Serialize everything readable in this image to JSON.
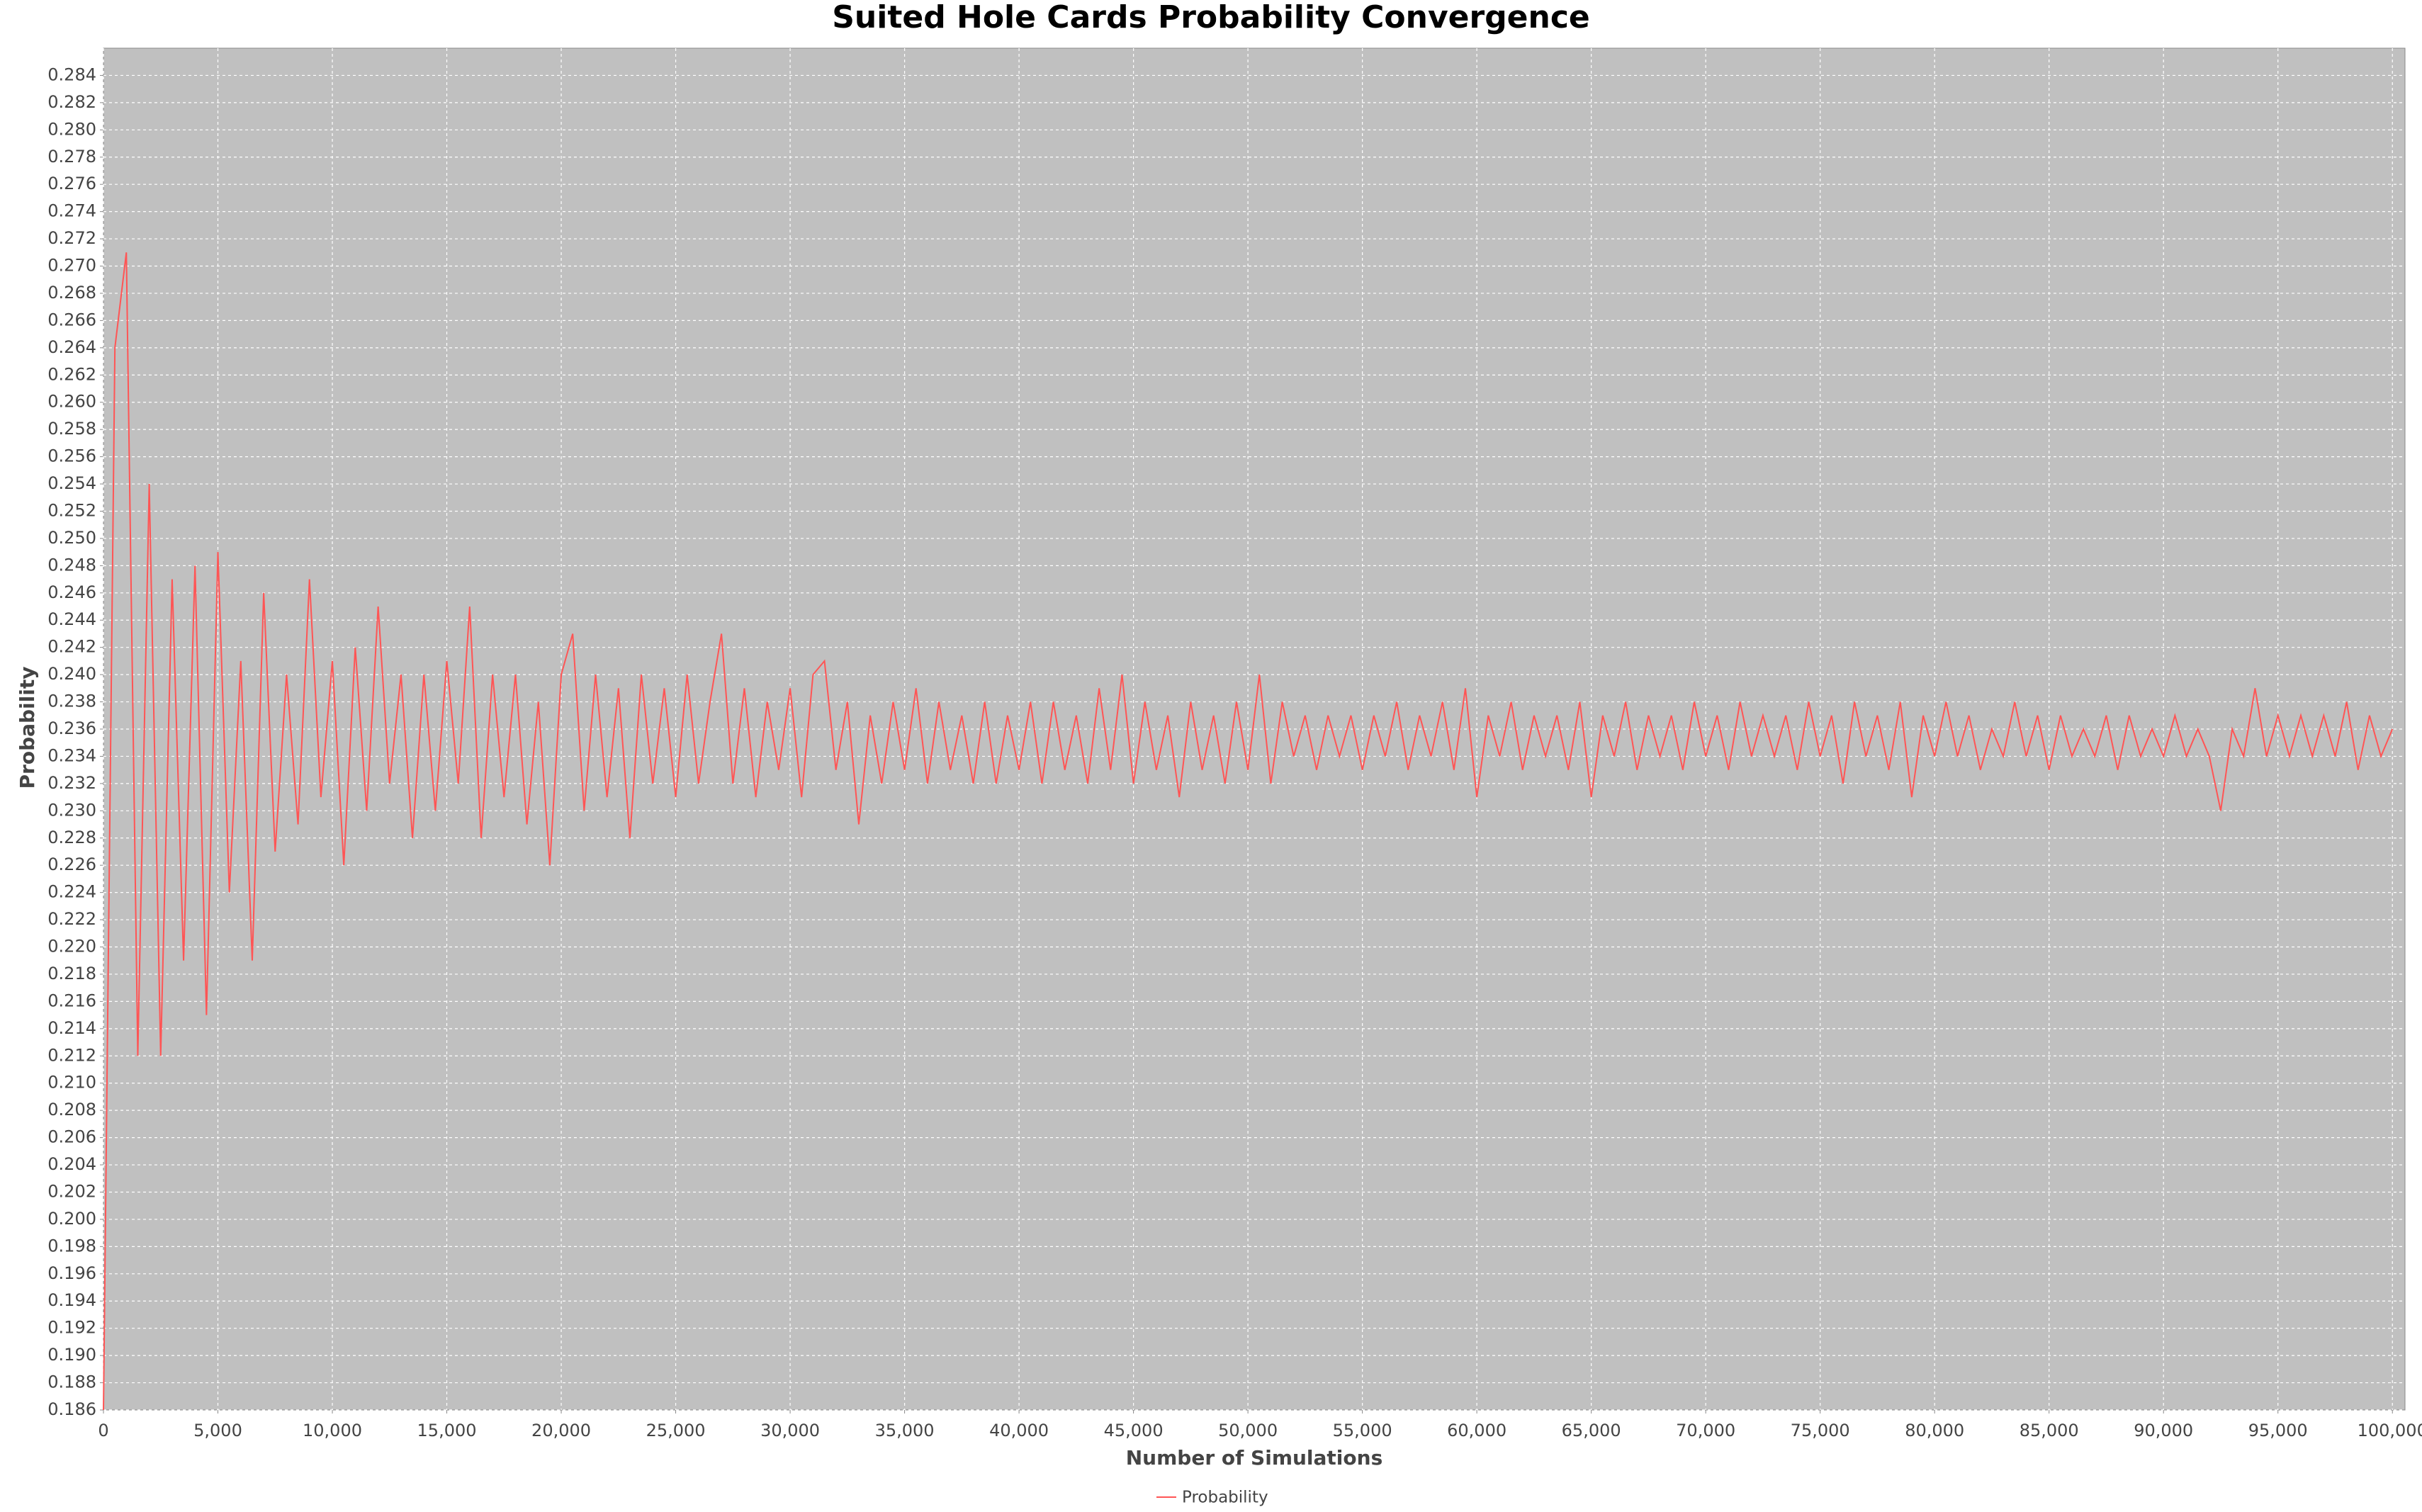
{
  "chart_data": {
    "type": "line",
    "title": "Suited Hole Cards Probability Convergence",
    "xlabel": "Number of Simulations",
    "ylabel": "Probability",
    "grid": true,
    "legend": "bottom",
    "xlim": [
      0,
      100550
    ],
    "ylim": [
      0.186,
      0.286
    ],
    "xticks": [
      {
        "value": 0,
        "label": "0"
      },
      {
        "value": 5000,
        "label": "5,000"
      },
      {
        "value": 10000,
        "label": "10,000"
      },
      {
        "value": 15000,
        "label": "15,000"
      },
      {
        "value": 20000,
        "label": "20,000"
      },
      {
        "value": 25000,
        "label": "25,000"
      },
      {
        "value": 30000,
        "label": "30,000"
      },
      {
        "value": 35000,
        "label": "35,000"
      },
      {
        "value": 40000,
        "label": "40,000"
      },
      {
        "value": 45000,
        "label": "45,000"
      },
      {
        "value": 50000,
        "label": "50,000"
      },
      {
        "value": 55000,
        "label": "55,000"
      },
      {
        "value": 60000,
        "label": "60,000"
      },
      {
        "value": 65000,
        "label": "65,000"
      },
      {
        "value": 70000,
        "label": "70,000"
      },
      {
        "value": 75000,
        "label": "75,000"
      },
      {
        "value": 80000,
        "label": "80,000"
      },
      {
        "value": 85000,
        "label": "85,000"
      },
      {
        "value": 90000,
        "label": "90,000"
      },
      {
        "value": 95000,
        "label": "95,000"
      },
      {
        "value": 100000,
        "label": "100,000"
      }
    ],
    "yticks": [
      {
        "value": 0.186,
        "label": "0.186"
      },
      {
        "value": 0.188,
        "label": "0.188"
      },
      {
        "value": 0.19,
        "label": "0.190"
      },
      {
        "value": 0.192,
        "label": "0.192"
      },
      {
        "value": 0.194,
        "label": "0.194"
      },
      {
        "value": 0.196,
        "label": "0.196"
      },
      {
        "value": 0.198,
        "label": "0.198"
      },
      {
        "value": 0.2,
        "label": "0.200"
      },
      {
        "value": 0.202,
        "label": "0.202"
      },
      {
        "value": 0.204,
        "label": "0.204"
      },
      {
        "value": 0.206,
        "label": "0.206"
      },
      {
        "value": 0.208,
        "label": "0.208"
      },
      {
        "value": 0.21,
        "label": "0.210"
      },
      {
        "value": 0.212,
        "label": "0.212"
      },
      {
        "value": 0.214,
        "label": "0.214"
      },
      {
        "value": 0.216,
        "label": "0.216"
      },
      {
        "value": 0.218,
        "label": "0.218"
      },
      {
        "value": 0.22,
        "label": "0.220"
      },
      {
        "value": 0.222,
        "label": "0.222"
      },
      {
        "value": 0.224,
        "label": "0.224"
      },
      {
        "value": 0.226,
        "label": "0.226"
      },
      {
        "value": 0.228,
        "label": "0.228"
      },
      {
        "value": 0.23,
        "label": "0.230"
      },
      {
        "value": 0.232,
        "label": "0.232"
      },
      {
        "value": 0.234,
        "label": "0.234"
      },
      {
        "value": 0.236,
        "label": "0.236"
      },
      {
        "value": 0.238,
        "label": "0.238"
      },
      {
        "value": 0.24,
        "label": "0.240"
      },
      {
        "value": 0.242,
        "label": "0.242"
      },
      {
        "value": 0.244,
        "label": "0.244"
      },
      {
        "value": 0.246,
        "label": "0.246"
      },
      {
        "value": 0.248,
        "label": "0.248"
      },
      {
        "value": 0.25,
        "label": "0.250"
      },
      {
        "value": 0.252,
        "label": "0.252"
      },
      {
        "value": 0.254,
        "label": "0.254"
      },
      {
        "value": 0.256,
        "label": "0.256"
      },
      {
        "value": 0.258,
        "label": "0.258"
      },
      {
        "value": 0.26,
        "label": "0.260"
      },
      {
        "value": 0.262,
        "label": "0.262"
      },
      {
        "value": 0.264,
        "label": "0.264"
      },
      {
        "value": 0.266,
        "label": "0.266"
      },
      {
        "value": 0.268,
        "label": "0.268"
      },
      {
        "value": 0.27,
        "label": "0.270"
      },
      {
        "value": 0.272,
        "label": "0.272"
      },
      {
        "value": 0.274,
        "label": "0.274"
      },
      {
        "value": 0.276,
        "label": "0.276"
      },
      {
        "value": 0.278,
        "label": "0.278"
      },
      {
        "value": 0.28,
        "label": "0.280"
      },
      {
        "value": 0.282,
        "label": "0.282"
      },
      {
        "value": 0.284,
        "label": "0.284"
      }
    ],
    "x": [
      0,
      500,
      1000,
      1500,
      2000,
      2500,
      3000,
      3500,
      4000,
      4500,
      5000,
      5500,
      6000,
      6500,
      7000,
      7500,
      8000,
      8500,
      9000,
      9500,
      10000,
      10500,
      11000,
      11500,
      12000,
      12500,
      13000,
      13500,
      14000,
      14500,
      15000,
      15500,
      16000,
      16500,
      17000,
      17500,
      18000,
      18500,
      19000,
      19500,
      20000,
      20500,
      21000,
      21500,
      22000,
      22500,
      23000,
      23500,
      24000,
      24500,
      25000,
      25500,
      26000,
      26500,
      27000,
      27500,
      28000,
      28500,
      29000,
      29500,
      30000,
      30500,
      31000,
      31500,
      32000,
      32500,
      33000,
      33500,
      34000,
      34500,
      35000,
      35500,
      36000,
      36500,
      37000,
      37500,
      38000,
      38500,
      39000,
      39500,
      40000,
      40500,
      41000,
      41500,
      42000,
      42500,
      43000,
      43500,
      44000,
      44500,
      45000,
      45500,
      46000,
      46500,
      47000,
      47500,
      48000,
      48500,
      49000,
      49500,
      50000,
      50500,
      51000,
      51500,
      52000,
      52500,
      53000,
      53500,
      54000,
      54500,
      55000,
      55500,
      56000,
      56500,
      57000,
      57500,
      58000,
      58500,
      59000,
      59500,
      60000,
      60500,
      61000,
      61500,
      62000,
      62500,
      63000,
      63500,
      64000,
      64500,
      65000,
      65500,
      66000,
      66500,
      67000,
      67500,
      68000,
      68500,
      69000,
      69500,
      70000,
      70500,
      71000,
      71500,
      72000,
      72500,
      73000,
      73500,
      74000,
      74500,
      75000,
      75500,
      76000,
      76500,
      77000,
      77500,
      78000,
      78500,
      79000,
      79500,
      80000,
      80500,
      81000,
      81500,
      82000,
      82500,
      83000,
      83500,
      84000,
      84500,
      85000,
      85500,
      86000,
      86500,
      87000,
      87500,
      88000,
      88500,
      89000,
      89500,
      90000,
      90500,
      91000,
      91500,
      92000,
      92500,
      93000,
      93500,
      94000,
      94500,
      95000,
      95500,
      96000,
      96500,
      97000,
      97500,
      98000,
      98500,
      99000,
      99500,
      100000
    ],
    "series": [
      {
        "name": "Probability",
        "color": "#ff5555",
        "values": [
          0.186,
          0.264,
          0.271,
          0.212,
          0.254,
          0.212,
          0.247,
          0.219,
          0.248,
          0.215,
          0.249,
          0.224,
          0.241,
          0.219,
          0.246,
          0.227,
          0.24,
          0.229,
          0.247,
          0.231,
          0.241,
          0.226,
          0.242,
          0.23,
          0.245,
          0.232,
          0.24,
          0.228,
          0.24,
          0.23,
          0.241,
          0.232,
          0.245,
          0.228,
          0.24,
          0.231,
          0.24,
          0.229,
          0.238,
          0.226,
          0.24,
          0.243,
          0.23,
          0.24,
          0.231,
          0.239,
          0.228,
          0.24,
          0.232,
          0.239,
          0.231,
          0.24,
          0.232,
          0.238,
          0.243,
          0.232,
          0.239,
          0.231,
          0.238,
          0.233,
          0.239,
          0.231,
          0.24,
          0.241,
          0.233,
          0.238,
          0.229,
          0.237,
          0.232,
          0.238,
          0.233,
          0.239,
          0.232,
          0.238,
          0.233,
          0.237,
          0.232,
          0.238,
          0.232,
          0.237,
          0.233,
          0.238,
          0.232,
          0.238,
          0.233,
          0.237,
          0.232,
          0.239,
          0.233,
          0.24,
          0.232,
          0.238,
          0.233,
          0.237,
          0.231,
          0.238,
          0.233,
          0.237,
          0.232,
          0.238,
          0.233,
          0.24,
          0.232,
          0.238,
          0.234,
          0.237,
          0.233,
          0.237,
          0.234,
          0.237,
          0.233,
          0.237,
          0.234,
          0.238,
          0.233,
          0.237,
          0.234,
          0.238,
          0.233,
          0.239,
          0.231,
          0.237,
          0.234,
          0.238,
          0.233,
          0.237,
          0.234,
          0.237,
          0.233,
          0.238,
          0.231,
          0.237,
          0.234,
          0.238,
          0.233,
          0.237,
          0.234,
          0.237,
          0.233,
          0.238,
          0.234,
          0.237,
          0.233,
          0.238,
          0.234,
          0.237,
          0.234,
          0.237,
          0.233,
          0.238,
          0.234,
          0.237,
          0.232,
          0.238,
          0.234,
          0.237,
          0.233,
          0.238,
          0.231,
          0.237,
          0.234,
          0.238,
          0.234,
          0.237,
          0.233,
          0.236,
          0.234,
          0.238,
          0.234,
          0.237,
          0.233,
          0.237,
          0.234,
          0.236,
          0.234,
          0.237,
          0.233,
          0.237,
          0.234,
          0.236,
          0.234,
          0.237,
          0.234,
          0.236,
          0.234,
          0.23,
          0.236,
          0.234,
          0.239,
          0.234,
          0.237,
          0.234,
          0.237,
          0.234,
          0.237,
          0.234,
          0.238,
          0.233,
          0.237,
          0.234,
          0.236
        ]
      }
    ]
  }
}
